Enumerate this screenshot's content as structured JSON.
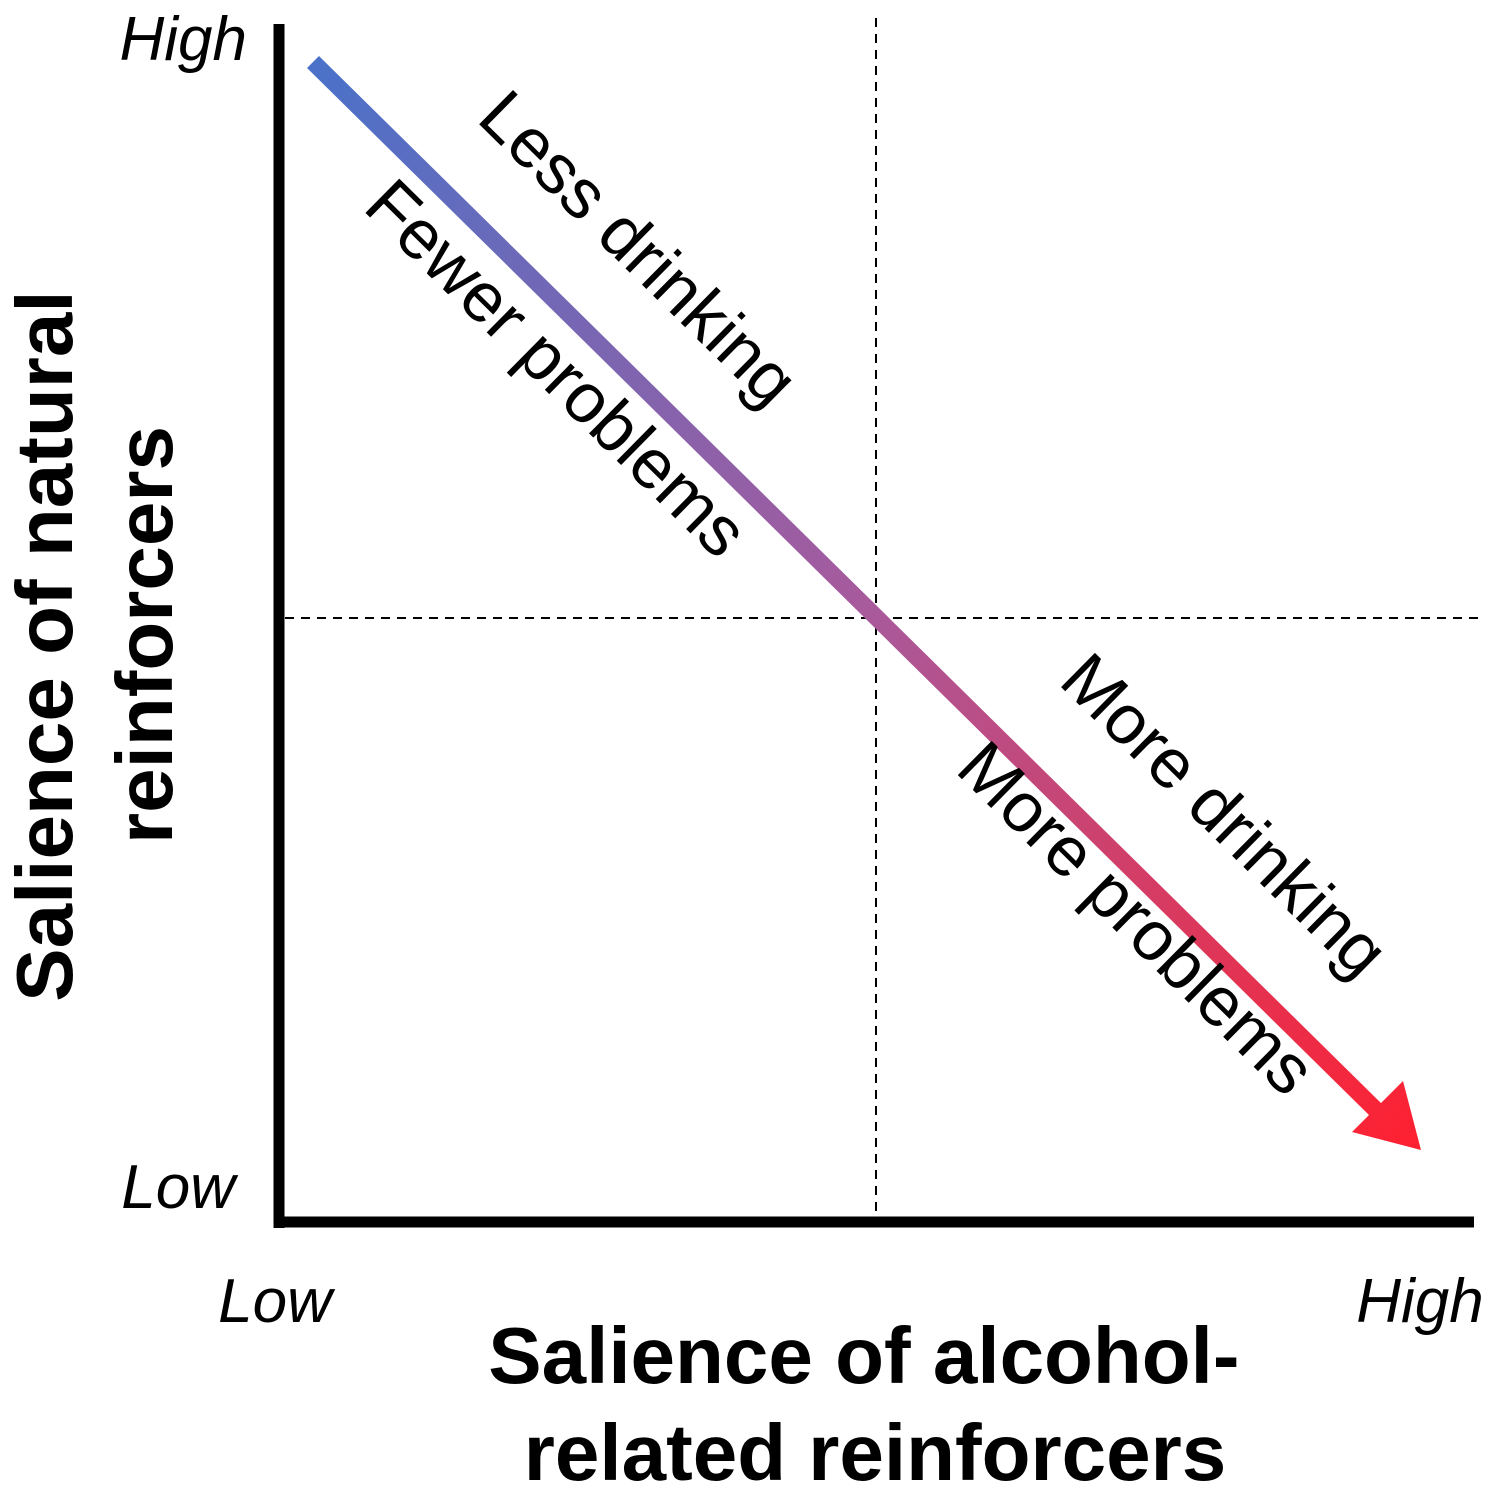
{
  "y_axis": {
    "title_lines": [
      "Salience of natural",
      "reinforcers"
    ],
    "high_label": "High",
    "low_label": "Low"
  },
  "x_axis": {
    "title_lines": [
      "Salience of alcohol-",
      "related reinforcers"
    ],
    "low_label": "Low",
    "high_label": "High"
  },
  "arrow": {
    "start_color": "#4a72c9",
    "end_color": "#ff2030"
  },
  "labels": {
    "upper_left_top": "Less drinking",
    "upper_left_bottom": "Fewer problems",
    "lower_right_top": "More drinking",
    "lower_right_bottom": "More problems"
  }
}
